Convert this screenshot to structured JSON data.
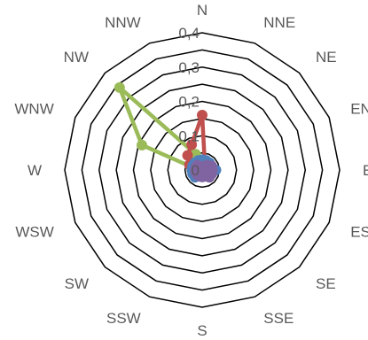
{
  "chart_data": {
    "type": "radar",
    "title": "",
    "categories": [
      "N",
      "NNE",
      "NE",
      "ENE",
      "E",
      "ESE",
      "SE",
      "SSE",
      "S",
      "SSW",
      "SW",
      "WSW",
      "W",
      "WNW",
      "NW",
      "NNW"
    ],
    "radial_ticks": [
      "0",
      "0,1",
      "0,2",
      "0,3",
      "0,4"
    ],
    "rlim": [
      0,
      0.4
    ],
    "grid": true,
    "legend": "none",
    "series": [
      {
        "color": "#9bbb59",
        "values": [
          0.02,
          0.01,
          0.01,
          0.01,
          0.01,
          0.01,
          0.01,
          0.01,
          0.01,
          0.01,
          0.01,
          0.01,
          0.01,
          0.19,
          0.34,
          0.05
        ]
      },
      {
        "color": "#c0504d",
        "values": [
          0.16,
          0.02,
          0.01,
          0.01,
          0.01,
          0.01,
          0.01,
          0.01,
          0.01,
          0.01,
          0.01,
          0.02,
          0.03,
          0.04,
          0.06,
          0.08
        ]
      },
      {
        "color": "#4f81bd",
        "values": [
          0.03,
          0.03,
          0.03,
          0.03,
          0.04,
          0.03,
          0.02,
          0.02,
          0.02,
          0.02,
          0.03,
          0.03,
          0.03,
          0.03,
          0.03,
          0.03
        ]
      },
      {
        "color": "#8064a2",
        "values": [
          0.01,
          0.01,
          0.02,
          0.03,
          0.03,
          0.03,
          0.03,
          0.02,
          0.02,
          0.02,
          0.02,
          0.02,
          0.02,
          0.02,
          0.02,
          0.01
        ]
      }
    ]
  }
}
